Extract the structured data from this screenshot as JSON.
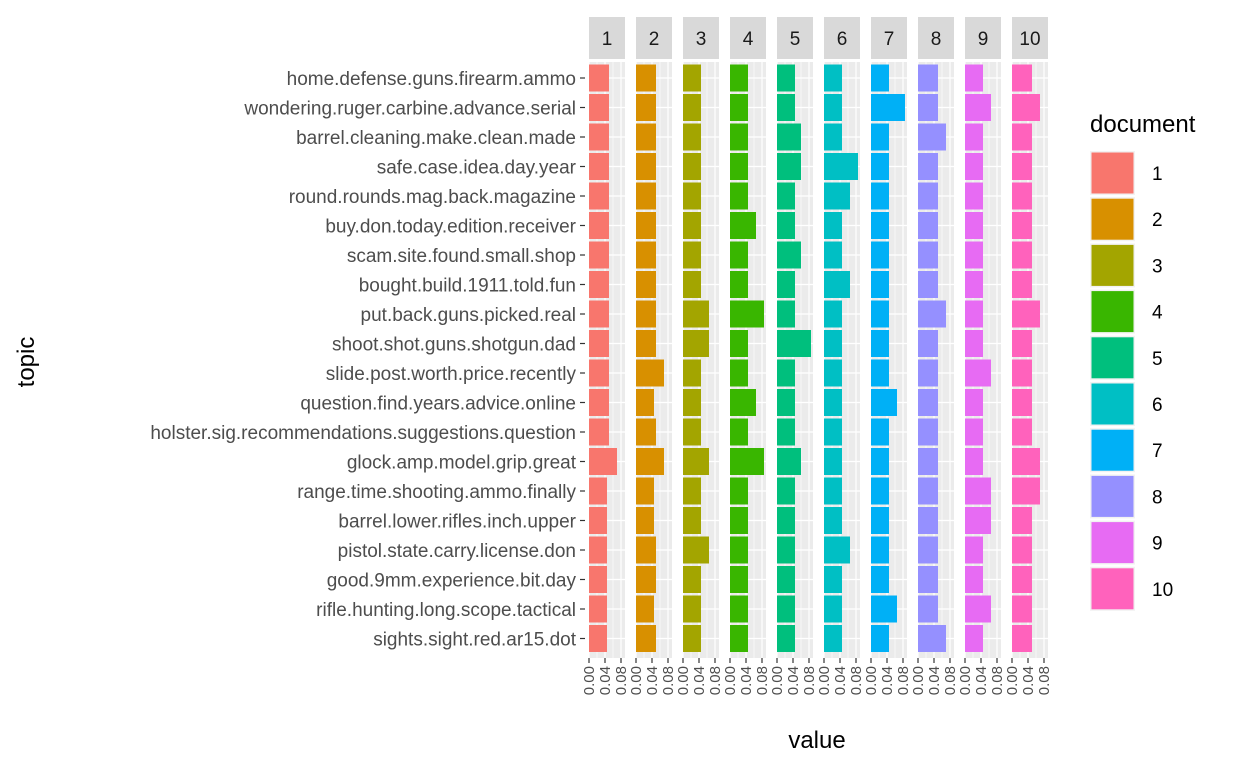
{
  "chart_data": {
    "type": "bar",
    "orientation": "horizontal",
    "facet_by": "document",
    "xlabel": "value",
    "ylabel": "topic",
    "xlim": [
      0,
      0.09
    ],
    "x_ticks": [
      "0.00",
      "0.04",
      "0.08"
    ],
    "legend": {
      "title": "document",
      "placement": "right",
      "entries": [
        "1",
        "2",
        "3",
        "4",
        "5",
        "6",
        "7",
        "8",
        "9",
        "10"
      ]
    },
    "facets": [
      "1",
      "2",
      "3",
      "4",
      "5",
      "6",
      "7",
      "8",
      "9",
      "10"
    ],
    "colors": [
      "#F8766D",
      "#D89000",
      "#A3A500",
      "#39B600",
      "#00BF7D",
      "#00BFC4",
      "#00B0F6",
      "#9590FF",
      "#E76BF3",
      "#FF62BC"
    ],
    "categories": [
      "home.defense.guns.firearm.ammo",
      "wondering.ruger.carbine.advance.serial",
      "barrel.cleaning.make.clean.made",
      "safe.case.idea.day.year",
      "round.rounds.mag.back.magazine",
      "buy.don.today.edition.receiver",
      "scam.site.found.small.shop",
      "bought.build.1911.told.fun",
      "put.back.guns.picked.real",
      "shoot.shot.guns.shotgun.dad",
      "slide.post.worth.price.recently",
      "question.find.years.advice.online",
      "holster.sig.recommendations.suggestions.question",
      "glock.amp.model.grip.great",
      "range.time.shooting.ammo.finally",
      "barrel.lower.rifles.inch.upper",
      "pistol.state.carry.license.don",
      "good.9mm.experience.bit.day",
      "rifle.hunting.long.scope.tactical",
      "sights.sight.red.ar15.dot"
    ],
    "series": [
      {
        "name": "1",
        "values": [
          0.05,
          0.05,
          0.05,
          0.05,
          0.05,
          0.05,
          0.05,
          0.05,
          0.05,
          0.05,
          0.05,
          0.05,
          0.05,
          0.07,
          0.045,
          0.045,
          0.045,
          0.045,
          0.045,
          0.045
        ]
      },
      {
        "name": "2",
        "values": [
          0.05,
          0.05,
          0.05,
          0.05,
          0.05,
          0.05,
          0.05,
          0.05,
          0.05,
          0.05,
          0.07,
          0.045,
          0.05,
          0.07,
          0.045,
          0.045,
          0.05,
          0.05,
          0.045,
          0.05
        ]
      },
      {
        "name": "3",
        "values": [
          0.045,
          0.045,
          0.045,
          0.045,
          0.045,
          0.045,
          0.045,
          0.045,
          0.065,
          0.065,
          0.045,
          0.045,
          0.045,
          0.065,
          0.045,
          0.045,
          0.065,
          0.045,
          0.045,
          0.045
        ]
      },
      {
        "name": "4",
        "values": [
          0.045,
          0.045,
          0.045,
          0.045,
          0.045,
          0.065,
          0.045,
          0.045,
          0.085,
          0.045,
          0.045,
          0.065,
          0.045,
          0.085,
          0.045,
          0.045,
          0.045,
          0.045,
          0.045,
          0.045
        ]
      },
      {
        "name": "5",
        "values": [
          0.045,
          0.045,
          0.06,
          0.06,
          0.045,
          0.045,
          0.06,
          0.045,
          0.045,
          0.085,
          0.045,
          0.045,
          0.045,
          0.06,
          0.045,
          0.045,
          0.045,
          0.045,
          0.045,
          0.045
        ]
      },
      {
        "name": "6",
        "values": [
          0.045,
          0.045,
          0.045,
          0.085,
          0.065,
          0.045,
          0.045,
          0.065,
          0.045,
          0.045,
          0.045,
          0.045,
          0.045,
          0.045,
          0.045,
          0.045,
          0.065,
          0.045,
          0.045,
          0.045
        ]
      },
      {
        "name": "7",
        "values": [
          0.045,
          0.085,
          0.045,
          0.045,
          0.045,
          0.045,
          0.045,
          0.045,
          0.045,
          0.045,
          0.045,
          0.065,
          0.045,
          0.045,
          0.045,
          0.045,
          0.045,
          0.045,
          0.065,
          0.045
        ]
      },
      {
        "name": "8",
        "values": [
          0.05,
          0.05,
          0.07,
          0.05,
          0.05,
          0.05,
          0.05,
          0.05,
          0.07,
          0.05,
          0.05,
          0.05,
          0.05,
          0.05,
          0.05,
          0.05,
          0.05,
          0.05,
          0.05,
          0.07
        ]
      },
      {
        "name": "9",
        "values": [
          0.045,
          0.065,
          0.045,
          0.045,
          0.045,
          0.045,
          0.045,
          0.045,
          0.045,
          0.045,
          0.065,
          0.045,
          0.045,
          0.045,
          0.065,
          0.065,
          0.045,
          0.045,
          0.065,
          0.045
        ]
      },
      {
        "name": "10",
        "values": [
          0.05,
          0.07,
          0.05,
          0.05,
          0.05,
          0.05,
          0.05,
          0.05,
          0.07,
          0.05,
          0.05,
          0.05,
          0.05,
          0.07,
          0.07,
          0.05,
          0.05,
          0.05,
          0.05,
          0.05
        ]
      }
    ]
  }
}
